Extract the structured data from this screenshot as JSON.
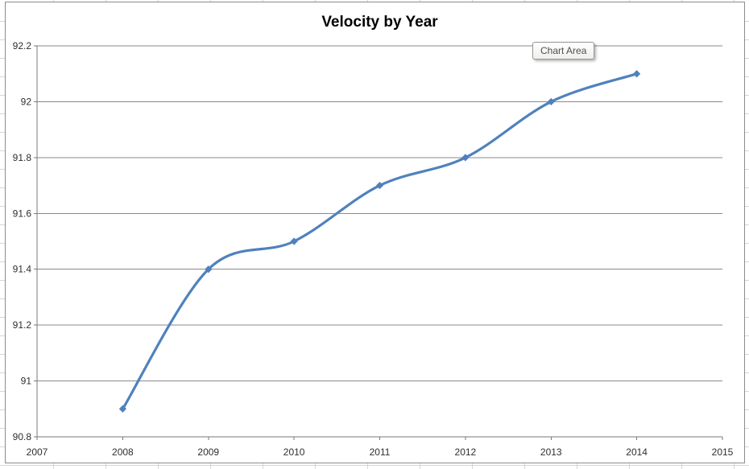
{
  "tooltip": {
    "label": "Chart Area"
  },
  "chart_data": {
    "type": "line",
    "title": "Velocity by Year",
    "x": [
      2008,
      2009,
      2010,
      2011,
      2012,
      2013,
      2014
    ],
    "values": [
      90.9,
      91.4,
      91.5,
      91.7,
      91.8,
      92.0,
      92.1
    ],
    "series_name": "Velocity",
    "x_axis": {
      "min": 2007,
      "max": 2015,
      "step": 1,
      "tick_labels": [
        "2007",
        "2008",
        "2009",
        "2010",
        "2011",
        "2012",
        "2013",
        "2014",
        "2015"
      ]
    },
    "y_axis": {
      "min": 90.8,
      "max": 92.2,
      "step": 0.2,
      "tick_labels": [
        "90.8",
        "91",
        "91.2",
        "91.4",
        "91.6",
        "91.8",
        "92",
        "92.2"
      ]
    },
    "smoothed": true,
    "marker": "diamond",
    "legend_position": "none",
    "grid": "horizontal",
    "line_color": "#4F81BD",
    "marker_color": "#4F81BD",
    "gridline_color": "#8a8a8a",
    "axis_color": "#7a7a7a",
    "title_color": "#000000"
  }
}
